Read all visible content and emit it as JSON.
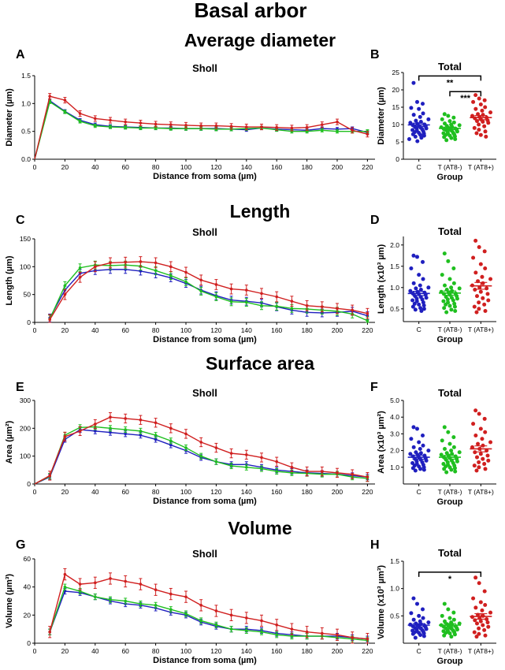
{
  "figure": {
    "main_title": "Basal arbor",
    "section_titles": [
      "Average diameter",
      "Length",
      "Surface area",
      "Volume"
    ],
    "colors": {
      "C": "#1f1fbf",
      "T_AT8_neg": "#1fbf1f",
      "T_AT8_pos": "#d01f1f"
    }
  },
  "chart_data": [
    {
      "id": "A",
      "type": "line",
      "title": "Sholl",
      "xlabel": "Distance from soma (µm)",
      "ylabel": "Diameter (µm)",
      "xlim": [
        0,
        225
      ],
      "ylim": [
        0,
        1.5
      ],
      "xticks": [
        0,
        20,
        40,
        60,
        80,
        100,
        120,
        140,
        160,
        180,
        200,
        220
      ],
      "yticks": [
        0,
        0.5,
        1.0,
        1.5
      ],
      "ytick_labels": [
        "0.0",
        "0.5",
        "1.0",
        "1.5"
      ],
      "x": [
        0,
        10,
        20,
        30,
        40,
        50,
        60,
        70,
        80,
        90,
        100,
        110,
        120,
        130,
        140,
        150,
        160,
        170,
        180,
        190,
        200,
        210,
        220
      ],
      "series": [
        {
          "color_key": "C",
          "err": 0.03,
          "values": [
            0,
            1.05,
            0.86,
            0.7,
            0.62,
            0.59,
            0.58,
            0.57,
            0.56,
            0.56,
            0.55,
            0.55,
            0.55,
            0.54,
            0.53,
            0.56,
            0.54,
            0.53,
            0.52,
            0.55,
            0.54,
            0.55,
            0.48
          ]
        },
        {
          "color_key": "T_AT8_neg",
          "err": 0.03,
          "values": [
            0,
            1.03,
            0.85,
            0.68,
            0.6,
            0.58,
            0.57,
            0.56,
            0.56,
            0.55,
            0.55,
            0.55,
            0.54,
            0.54,
            0.55,
            0.56,
            0.53,
            0.5,
            0.5,
            0.52,
            0.5,
            0.5,
            0.5
          ]
        },
        {
          "color_key": "T_AT8_pos",
          "err": 0.05,
          "values": [
            0,
            1.13,
            1.06,
            0.82,
            0.73,
            0.7,
            0.67,
            0.65,
            0.63,
            0.62,
            0.61,
            0.6,
            0.6,
            0.59,
            0.58,
            0.58,
            0.57,
            0.56,
            0.57,
            0.62,
            0.67,
            0.52,
            0.45
          ]
        }
      ]
    },
    {
      "id": "B",
      "type": "scatter",
      "title": "Total",
      "xlabel": "Group",
      "ylabel": "Diameter (µm)",
      "categories": [
        "C",
        "T (AT8-)",
        "T (AT8+)"
      ],
      "ylim": [
        0,
        25
      ],
      "yticks": [
        0,
        5,
        10,
        15,
        20,
        25
      ],
      "ytick_labels": [
        "0",
        "5",
        "10",
        "15",
        "20",
        "25"
      ],
      "groups": [
        {
          "color_key": "C",
          "mean": 9.9,
          "sem": 0.5,
          "values": [
            22,
            16.5,
            16,
            14.8,
            14.5,
            13.2,
            12.8,
            12.2,
            11.5,
            11.1,
            10.8,
            10.5,
            10.2,
            10,
            9.8,
            9.6,
            9.5,
            9.3,
            9.1,
            8.9,
            8.8,
            8.6,
            8.4,
            8.2,
            8,
            7.8,
            7.6,
            7.4,
            7.2,
            7,
            6.8,
            6.5,
            6.2,
            5.8,
            5.2
          ]
        },
        {
          "color_key": "T_AT8_neg",
          "mean": 8.9,
          "sem": 0.35,
          "values": [
            13,
            12.5,
            12,
            11.5,
            11,
            10.6,
            10.3,
            10,
            9.8,
            9.6,
            9.4,
            9.2,
            9,
            8.8,
            8.7,
            8.6,
            8.5,
            8.4,
            8.2,
            8,
            7.8,
            7.6,
            7.5,
            7.3,
            7.1,
            7,
            6.8,
            6.6,
            6.4,
            6.1,
            5.8,
            5.5
          ]
        },
        {
          "color_key": "T_AT8_pos",
          "mean": 12.0,
          "sem": 0.6,
          "values": [
            18.5,
            17.5,
            17,
            16.5,
            15.8,
            15,
            14.5,
            14,
            13.5,
            13,
            12.8,
            12.5,
            12.2,
            12,
            11.8,
            11.5,
            11.2,
            11,
            10.8,
            10.5,
            10,
            9.5,
            9,
            8.5,
            8,
            7.5,
            7,
            6.5
          ]
        }
      ],
      "significance": [
        {
          "from": 0,
          "to": 2,
          "label": "**",
          "y": 24
        },
        {
          "from": 1,
          "to": 2,
          "label": "***",
          "y": 19.5
        }
      ]
    },
    {
      "id": "C",
      "type": "line",
      "title": "Sholl",
      "xlabel": "Distance from soma (µm)",
      "ylabel": "Length (µm)",
      "xlim": [
        0,
        225
      ],
      "ylim": [
        0,
        150
      ],
      "xticks": [
        0,
        20,
        40,
        60,
        80,
        100,
        120,
        140,
        160,
        180,
        200,
        220
      ],
      "yticks": [
        0,
        50,
        100,
        150
      ],
      "ytick_labels": [
        "0",
        "50",
        "100",
        "150"
      ],
      "x": [
        10,
        20,
        30,
        40,
        50,
        60,
        70,
        80,
        90,
        100,
        110,
        120,
        130,
        140,
        150,
        160,
        170,
        180,
        190,
        200,
        210,
        220
      ],
      "series": [
        {
          "color_key": "C",
          "err": 7,
          "values": [
            8,
            58,
            88,
            93,
            95,
            95,
            92,
            87,
            80,
            70,
            58,
            48,
            40,
            38,
            35,
            28,
            22,
            18,
            17,
            18,
            20,
            12
          ]
        },
        {
          "color_key": "T_AT8_neg",
          "err": 7,
          "values": [
            6,
            66,
            98,
            103,
            102,
            103,
            101,
            93,
            84,
            73,
            56,
            46,
            37,
            36,
            30,
            29,
            25,
            24,
            22,
            20,
            15,
            3
          ]
        },
        {
          "color_key": "T_AT8_pos",
          "err": 9,
          "values": [
            5,
            50,
            81,
            100,
            107,
            108,
            109,
            107,
            100,
            90,
            76,
            68,
            60,
            58,
            52,
            46,
            38,
            30,
            28,
            25,
            22,
            16
          ]
        }
      ]
    },
    {
      "id": "D",
      "type": "scatter",
      "title": "Total",
      "xlabel": "Group",
      "ylabel": "Length (x10³ µm)",
      "categories": [
        "C",
        "T (AT8-)",
        "T (AT8+)"
      ],
      "ylim": [
        0.2,
        2.2
      ],
      "yticks": [
        0.5,
        1.0,
        1.5,
        2.0
      ],
      "ytick_labels": [
        "0.5",
        "1.0",
        "1.5",
        "2.0"
      ],
      "groups": [
        {
          "color_key": "C",
          "mean": 0.86,
          "sem": 0.05,
          "values": [
            1.75,
            1.72,
            1.6,
            1.45,
            1.3,
            1.2,
            1.1,
            1.05,
            1,
            0.98,
            0.95,
            0.92,
            0.9,
            0.88,
            0.86,
            0.85,
            0.83,
            0.8,
            0.78,
            0.76,
            0.74,
            0.72,
            0.7,
            0.68,
            0.65,
            0.62,
            0.6,
            0.58,
            0.55,
            0.52,
            0.5,
            0.48,
            0.45
          ]
        },
        {
          "color_key": "T_AT8_neg",
          "mean": 0.87,
          "sem": 0.05,
          "values": [
            1.8,
            1.62,
            1.45,
            1.3,
            1.2,
            1.1,
            1.05,
            1,
            0.98,
            0.95,
            0.92,
            0.9,
            0.88,
            0.86,
            0.85,
            0.83,
            0.8,
            0.78,
            0.76,
            0.74,
            0.72,
            0.7,
            0.68,
            0.65,
            0.62,
            0.6,
            0.57,
            0.55,
            0.52,
            0.48,
            0.45,
            0.42
          ]
        },
        {
          "color_key": "T_AT8_pos",
          "mean": 1.04,
          "sem": 0.08,
          "values": [
            2.1,
            1.95,
            1.85,
            1.7,
            1.55,
            1.45,
            1.35,
            1.25,
            1.2,
            1.15,
            1.1,
            1.05,
            1,
            0.98,
            0.95,
            0.9,
            0.85,
            0.8,
            0.75,
            0.7,
            0.65,
            0.6,
            0.55,
            0.5,
            0.45,
            0.42
          ]
        }
      ]
    },
    {
      "id": "E",
      "type": "line",
      "title": "Sholl",
      "xlabel": "Distance from soma (µm)",
      "ylabel": "Area (µm²)",
      "xlim": [
        0,
        225
      ],
      "ylim": [
        0,
        300
      ],
      "xticks": [
        0,
        20,
        40,
        60,
        80,
        100,
        120,
        140,
        160,
        180,
        200,
        220
      ],
      "yticks": [
        0,
        100,
        200,
        300
      ],
      "ytick_labels": [
        "0",
        "100",
        "200",
        "300"
      ],
      "x": [
        0,
        10,
        20,
        30,
        40,
        50,
        60,
        70,
        80,
        90,
        100,
        110,
        120,
        130,
        140,
        150,
        160,
        170,
        180,
        190,
        200,
        210,
        220
      ],
      "series": [
        {
          "color_key": "C",
          "err": 10,
          "values": [
            0,
            25,
            160,
            195,
            190,
            185,
            180,
            175,
            160,
            140,
            120,
            95,
            80,
            70,
            70,
            60,
            50,
            45,
            40,
            38,
            35,
            30,
            25
          ]
        },
        {
          "color_key": "T_AT8_neg",
          "err": 10,
          "values": [
            0,
            28,
            175,
            203,
            205,
            200,
            195,
            190,
            175,
            155,
            130,
            100,
            80,
            65,
            60,
            55,
            45,
            40,
            38,
            35,
            35,
            25,
            20
          ]
        },
        {
          "color_key": "T_AT8_pos",
          "err": 16,
          "values": [
            0,
            30,
            170,
            190,
            215,
            240,
            235,
            230,
            220,
            200,
            180,
            150,
            130,
            110,
            105,
            95,
            80,
            60,
            45,
            45,
            40,
            35,
            25
          ]
        }
      ]
    },
    {
      "id": "F",
      "type": "scatter",
      "title": "Total",
      "xlabel": "Group",
      "ylabel": "Area (x10³ µm²)",
      "categories": [
        "C",
        "T (AT8-)",
        "T (AT8+)"
      ],
      "ylim": [
        0,
        5
      ],
      "yticks": [
        1.0,
        2.0,
        3.0,
        4.0,
        5.0
      ],
      "ytick_labels": [
        "1.0",
        "2.0",
        "3.0",
        "4.0",
        "5.0"
      ],
      "groups": [
        {
          "color_key": "C",
          "mean": 1.6,
          "sem": 0.12,
          "values": [
            3.4,
            3.3,
            2.9,
            2.7,
            2.5,
            2.3,
            2.2,
            2.1,
            2,
            1.9,
            1.85,
            1.8,
            1.75,
            1.7,
            1.65,
            1.6,
            1.55,
            1.5,
            1.45,
            1.4,
            1.35,
            1.3,
            1.25,
            1.2,
            1.15,
            1.1,
            1.05,
            1,
            0.95,
            0.9,
            0.85,
            0.8
          ]
        },
        {
          "color_key": "T_AT8_neg",
          "mean": 1.6,
          "sem": 0.11,
          "values": [
            3.4,
            3.1,
            2.8,
            2.6,
            2.4,
            2.2,
            2.1,
            2,
            1.9,
            1.85,
            1.8,
            1.75,
            1.7,
            1.65,
            1.6,
            1.55,
            1.5,
            1.45,
            1.4,
            1.35,
            1.3,
            1.25,
            1.2,
            1.15,
            1.1,
            1.05,
            1,
            0.95,
            0.9,
            0.85,
            0.75,
            0.7
          ]
        },
        {
          "color_key": "T_AT8_pos",
          "mean": 2.1,
          "sem": 0.18,
          "values": [
            4.4,
            4.2,
            3.9,
            3.6,
            3.3,
            3.1,
            2.9,
            2.7,
            2.5,
            2.4,
            2.3,
            2.2,
            2.1,
            2,
            1.9,
            1.8,
            1.7,
            1.6,
            1.5,
            1.4,
            1.3,
            1.2,
            1.1,
            1,
            0.9,
            0.8
          ]
        }
      ]
    },
    {
      "id": "G",
      "type": "line",
      "title": "Sholl",
      "xlabel": "Distance from soma (µm)",
      "ylabel": "Volume (µm³)",
      "xlim": [
        0,
        225
      ],
      "ylim": [
        0,
        60
      ],
      "xticks": [
        0,
        20,
        40,
        60,
        80,
        100,
        120,
        140,
        160,
        180,
        200,
        220
      ],
      "yticks": [
        0,
        20,
        40,
        60
      ],
      "ytick_labels": [
        "0",
        "20",
        "40",
        "60"
      ],
      "x": [
        10,
        20,
        30,
        40,
        50,
        60,
        70,
        80,
        90,
        100,
        110,
        120,
        130,
        140,
        150,
        160,
        170,
        180,
        190,
        200,
        210,
        220
      ],
      "series": [
        {
          "color_key": "C",
          "err": 2,
          "values": [
            8,
            37,
            36,
            33,
            30,
            28,
            27,
            25,
            22,
            20,
            15,
            12,
            10,
            10,
            9,
            7,
            6,
            5,
            5,
            5,
            4,
            3
          ]
        },
        {
          "color_key": "T_AT8_neg",
          "err": 2,
          "values": [
            8,
            40,
            37,
            33,
            31,
            30,
            28,
            27,
            24,
            21,
            16,
            13,
            10,
            9,
            8,
            6,
            5,
            5,
            5,
            4,
            3,
            2
          ]
        },
        {
          "color_key": "T_AT8_pos",
          "err": 4,
          "values": [
            8,
            49,
            42,
            43,
            46,
            44,
            42,
            38,
            35,
            33,
            27,
            23,
            20,
            18,
            16,
            13,
            10,
            8,
            7,
            6,
            4,
            3
          ]
        }
      ]
    },
    {
      "id": "H",
      "type": "scatter",
      "title": "Total",
      "xlabel": "Group",
      "ylabel": "Volume (x10³ µm³)",
      "categories": [
        "C",
        "T (AT8-)",
        "T (AT8+)"
      ],
      "ylim": [
        0,
        1.5
      ],
      "yticks": [
        0.5,
        1.0,
        1.5
      ],
      "ytick_labels": [
        "0.5",
        "1.0",
        "1.5"
      ],
      "groups": [
        {
          "color_key": "C",
          "mean": 0.33,
          "sem": 0.03,
          "values": [
            0.82,
            0.72,
            0.62,
            0.55,
            0.5,
            0.46,
            0.43,
            0.4,
            0.38,
            0.36,
            0.35,
            0.34,
            0.33,
            0.32,
            0.31,
            0.3,
            0.29,
            0.28,
            0.27,
            0.26,
            0.25,
            0.24,
            0.23,
            0.22,
            0.21,
            0.2,
            0.19,
            0.18,
            0.17,
            0.15,
            0.13,
            0.1
          ]
        },
        {
          "color_key": "T_AT8_neg",
          "mean": 0.33,
          "sem": 0.03,
          "values": [
            0.72,
            0.62,
            0.56,
            0.5,
            0.46,
            0.43,
            0.4,
            0.38,
            0.36,
            0.35,
            0.34,
            0.33,
            0.32,
            0.31,
            0.3,
            0.29,
            0.28,
            0.27,
            0.26,
            0.25,
            0.24,
            0.23,
            0.22,
            0.21,
            0.2,
            0.19,
            0.18,
            0.16,
            0.14,
            0.12
          ]
        },
        {
          "color_key": "T_AT8_pos",
          "mean": 0.49,
          "sem": 0.05,
          "values": [
            1.2,
            1.1,
            0.95,
            0.82,
            0.75,
            0.7,
            0.65,
            0.6,
            0.56,
            0.52,
            0.5,
            0.48,
            0.46,
            0.44,
            0.42,
            0.4,
            0.38,
            0.36,
            0.33,
            0.3,
            0.27,
            0.24,
            0.2,
            0.17,
            0.14,
            0.12
          ]
        }
      ],
      "significance": [
        {
          "from": 0,
          "to": 2,
          "label": "*",
          "y": 1.3
        }
      ]
    }
  ]
}
